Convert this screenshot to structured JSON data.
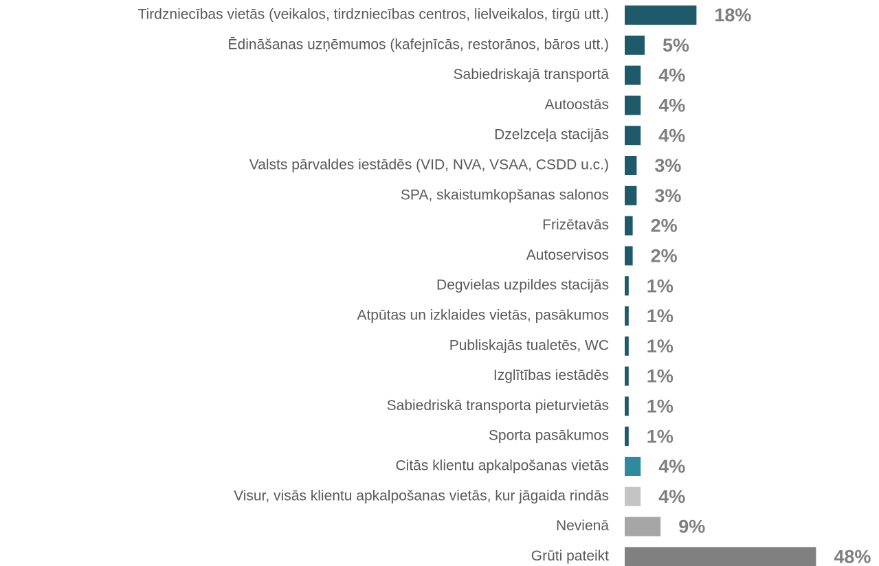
{
  "chart_data": {
    "type": "hbar",
    "categories": [
      "Tirdzniecības vietās (veikalos, tirdzniecības centros, lielveikalos, tirgū utt.)",
      "Ēdināšanas uzņēmumos (kafejnīcās, restorānos, bāros utt.)",
      "Sabiedriskajā transportā",
      "Autoostās",
      "Dzelzceļa stacijās",
      "Valsts pārvaldes iestādēs (VID, NVA, VSAA, CSDD u.c.)",
      "SPA, skaistumkopšanas salonos",
      "Frizētavās",
      "Autoservisos",
      "Degvielas uzpildes stacijās",
      "Atpūtas un izklaides vietās, pasākumos",
      "Publiskajās tualetēs, WC",
      "Izglītības iestādēs",
      "Sabiedriskā transporta pieturvietās",
      "Sporta pasākumos",
      "Citās klientu apkalpošanas vietās",
      "Visur, visās klientu apkalpošanas vietās, kur jāgaida rindās",
      "Nevienā",
      "Grūti pateikt"
    ],
    "values": [
      18,
      5,
      4,
      4,
      4,
      3,
      3,
      2,
      2,
      1,
      1,
      1,
      1,
      1,
      1,
      4,
      4,
      9,
      48
    ],
    "value_labels": [
      "18%",
      "5%",
      "4%",
      "4%",
      "4%",
      "3%",
      "3%",
      "2%",
      "2%",
      "1%",
      "1%",
      "1%",
      "1%",
      "1%",
      "1%",
      "4%",
      "4%",
      "9%",
      "48%"
    ],
    "colors": [
      "#1f5a6b",
      "#1f5a6b",
      "#1f5a6b",
      "#1f5a6b",
      "#1f5a6b",
      "#1f5a6b",
      "#1f5a6b",
      "#1f5a6b",
      "#1f5a6b",
      "#1f5a6b",
      "#1f5a6b",
      "#1f5a6b",
      "#1f5a6b",
      "#1f5a6b",
      "#1f5a6b",
      "#2e8a9c",
      "#c4c4c4",
      "#a6a6a6",
      "#808080"
    ]
  }
}
